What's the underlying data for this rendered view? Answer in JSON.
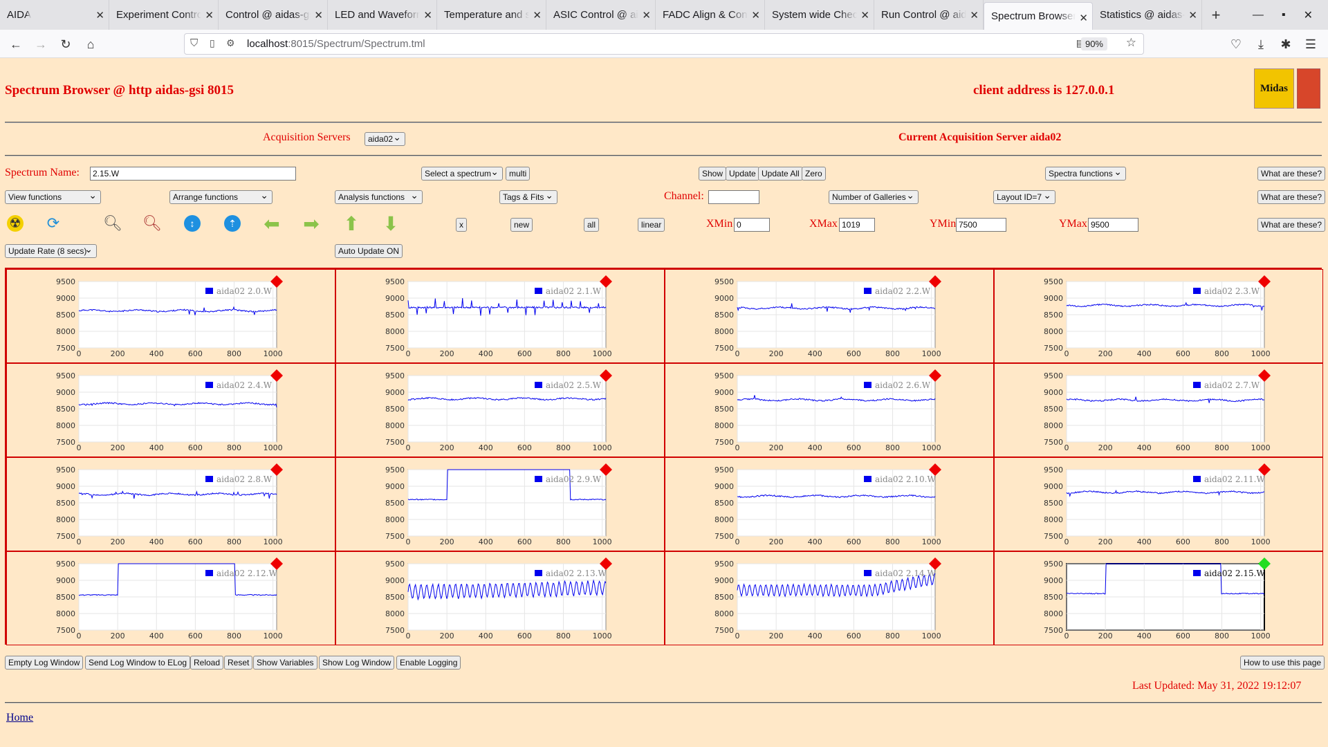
{
  "browser": {
    "tabs": [
      "AIDA",
      "Experiment Control",
      "Control @ aidas-gsi",
      "LED and Waveforms",
      "Temperature and status",
      "ASIC Control @ aidas",
      "FADC Align & Control",
      "System wide Checks",
      "Run Control @ aidas",
      "Spectrum Browser",
      "Statistics @ aidas-gsi"
    ],
    "active_tab": 9,
    "url_host": "localhost",
    "url_rest": ":8015/Spectrum/Spectrum.tml",
    "zoom": "90%"
  },
  "header": {
    "title": "Spectrum Browser @ http aidas-gsi 8015",
    "client": "client address is 127.0.0.1",
    "logo_text": "Midas"
  },
  "acq": {
    "label": "Acquisition Servers",
    "server": "aida02",
    "current": "Current Acquisition Server aida02"
  },
  "controls": {
    "spectrum_name_label": "Spectrum Name:",
    "spectrum_name": "2.15.W",
    "select_spectrum": "Select a spectrum",
    "multi": "multi",
    "show": "Show",
    "update": "Update",
    "update_all": "Update All",
    "zero": "Zero",
    "spectra_functions": "Spectra functions",
    "what": "What are these?",
    "view_functions": "View functions",
    "arrange_functions": "Arrange functions",
    "analysis_functions": "Analysis functions",
    "tags_fits": "Tags & Fits",
    "channel_label": "Channel:",
    "channel": "",
    "galleries": "Number of Galleries",
    "layout": "Layout ID=7",
    "x": "x",
    "new": "new",
    "all": "all",
    "linear": "linear",
    "xmin_label": "XMin",
    "xmin": "0",
    "xmax_label": "XMax",
    "xmax": "1019",
    "ymin_label": "YMin",
    "ymin": "7500",
    "ymax_label": "YMax",
    "ymax": "9500",
    "update_rate": "Update Rate (8 secs)",
    "auto_update": "Auto Update ON"
  },
  "icons": [
    "radiation-icon",
    "refresh-icon",
    "zoom-in-icon",
    "zoom-out-icon",
    "expand-vertical-icon",
    "compress-vertical-icon",
    "arrow-left-icon",
    "arrow-right-icon",
    "arrow-up-icon",
    "arrow-down-icon"
  ],
  "chart_data": [
    {
      "type": "line",
      "title": "aida02 2.0.W",
      "series": [
        {
          "name": "aida02 2.0.W",
          "shape": "flat",
          "level": 8620
        }
      ],
      "xlim": [
        0,
        1019
      ],
      "ylim": [
        7500,
        9500
      ],
      "xticks": [
        0,
        200,
        400,
        600,
        800,
        1000
      ],
      "yticks": [
        7500,
        8000,
        8500,
        9000,
        9500
      ],
      "marker": "red"
    },
    {
      "type": "line",
      "title": "aida02 2.1.W",
      "series": [
        {
          "name": "aida02 2.1.W",
          "shape": "spiky",
          "level": 8720
        }
      ],
      "xlim": [
        0,
        1019
      ],
      "ylim": [
        7500,
        9500
      ],
      "xticks": [
        0,
        200,
        400,
        600,
        800,
        1000
      ],
      "yticks": [
        7500,
        8000,
        8500,
        9000,
        9500
      ],
      "marker": "red"
    },
    {
      "type": "line",
      "title": "aida02 2.2.W",
      "series": [
        {
          "name": "aida02 2.2.W",
          "shape": "flat",
          "level": 8700
        }
      ],
      "xlim": [
        0,
        1019
      ],
      "ylim": [
        7500,
        9500
      ],
      "xticks": [
        0,
        200,
        400,
        600,
        800,
        1000
      ],
      "yticks": [
        7500,
        8000,
        8500,
        9000,
        9500
      ],
      "marker": "red"
    },
    {
      "type": "line",
      "title": "aida02 2.3.W",
      "series": [
        {
          "name": "aida02 2.3.W",
          "shape": "flat",
          "level": 8780
        }
      ],
      "xlim": [
        0,
        1019
      ],
      "ylim": [
        7500,
        9500
      ],
      "xticks": [
        0,
        200,
        400,
        600,
        800,
        1000
      ],
      "yticks": [
        7500,
        8000,
        8500,
        9000,
        9500
      ],
      "marker": "red"
    },
    {
      "type": "line",
      "title": "aida02 2.4.W",
      "series": [
        {
          "name": "aida02 2.4.W",
          "shape": "flat",
          "level": 8650
        }
      ],
      "xlim": [
        0,
        1019
      ],
      "ylim": [
        7500,
        9500
      ],
      "xticks": [
        0,
        200,
        400,
        600,
        800,
        1000
      ],
      "yticks": [
        7500,
        8000,
        8500,
        9000,
        9500
      ],
      "marker": "red"
    },
    {
      "type": "line",
      "title": "aida02 2.5.W",
      "series": [
        {
          "name": "aida02 2.5.W",
          "shape": "flat",
          "level": 8800
        }
      ],
      "xlim": [
        0,
        1019
      ],
      "ylim": [
        7500,
        9500
      ],
      "xticks": [
        0,
        200,
        400,
        600,
        800,
        1000
      ],
      "yticks": [
        7500,
        8000,
        8500,
        9000,
        9500
      ],
      "marker": "red"
    },
    {
      "type": "line",
      "title": "aida02 2.6.W",
      "series": [
        {
          "name": "aida02 2.6.W",
          "shape": "flat",
          "level": 8770
        }
      ],
      "xlim": [
        0,
        1019
      ],
      "ylim": [
        7500,
        9500
      ],
      "xticks": [
        0,
        200,
        400,
        600,
        800,
        1000
      ],
      "yticks": [
        7500,
        8000,
        8500,
        9000,
        9500
      ],
      "marker": "red"
    },
    {
      "type": "line",
      "title": "aida02 2.7.W",
      "series": [
        {
          "name": "aida02 2.7.W",
          "shape": "flat",
          "level": 8760
        }
      ],
      "xlim": [
        0,
        1019
      ],
      "ylim": [
        7500,
        9500
      ],
      "xticks": [
        0,
        200,
        400,
        600,
        800,
        1000
      ],
      "yticks": [
        7500,
        8000,
        8500,
        9000,
        9500
      ],
      "marker": "red"
    },
    {
      "type": "line",
      "title": "aida02 2.8.W",
      "series": [
        {
          "name": "aida02 2.8.W",
          "shape": "flat",
          "level": 8760
        }
      ],
      "xlim": [
        0,
        1019
      ],
      "ylim": [
        7500,
        9500
      ],
      "xticks": [
        0,
        200,
        400,
        600,
        800,
        1000
      ],
      "yticks": [
        7500,
        8000,
        8500,
        9000,
        9500
      ],
      "marker": "red"
    },
    {
      "type": "line",
      "title": "aida02 2.9.W",
      "series": [
        {
          "name": "aida02 2.9.W",
          "shape": "step",
          "level": 8600,
          "x0": 200,
          "x1": 835
        }
      ],
      "xlim": [
        0,
        1019
      ],
      "ylim": [
        7500,
        9500
      ],
      "xticks": [
        0,
        200,
        400,
        600,
        800,
        1000
      ],
      "yticks": [
        7500,
        8000,
        8500,
        9000,
        9500
      ],
      "marker": "red"
    },
    {
      "type": "line",
      "title": "aida02 2.10.W",
      "series": [
        {
          "name": "aida02 2.10.W",
          "shape": "flat",
          "level": 8700
        }
      ],
      "xlim": [
        0,
        1019
      ],
      "ylim": [
        7500,
        9500
      ],
      "xticks": [
        0,
        200,
        400,
        600,
        800,
        1000
      ],
      "yticks": [
        7500,
        8000,
        8500,
        9000,
        9500
      ],
      "marker": "red"
    },
    {
      "type": "line",
      "title": "aida02 2.11.W",
      "series": [
        {
          "name": "aida02 2.11.W",
          "shape": "flat",
          "level": 8820
        }
      ],
      "xlim": [
        0,
        1019
      ],
      "ylim": [
        7500,
        9500
      ],
      "xticks": [
        0,
        200,
        400,
        600,
        800,
        1000
      ],
      "yticks": [
        7500,
        8000,
        8500,
        9000,
        9500
      ],
      "marker": "red"
    },
    {
      "type": "line",
      "title": "aida02 2.12.W",
      "series": [
        {
          "name": "aida02 2.12.W",
          "shape": "step",
          "level": 8560,
          "x0": 200,
          "x1": 805
        }
      ],
      "xlim": [
        0,
        1019
      ],
      "ylim": [
        7500,
        9500
      ],
      "xticks": [
        0,
        200,
        400,
        600,
        800,
        1000
      ],
      "yticks": [
        7500,
        8000,
        8500,
        9000,
        9500
      ],
      "marker": "red"
    },
    {
      "type": "line",
      "title": "aida02 2.13.W",
      "series": [
        {
          "name": "aida02 2.13.W",
          "shape": "oscillate",
          "level": 8650
        }
      ],
      "xlim": [
        0,
        1019
      ],
      "ylim": [
        7500,
        9500
      ],
      "xticks": [
        0,
        200,
        400,
        600,
        800,
        1000
      ],
      "yticks": [
        7500,
        8000,
        8500,
        9000,
        9500
      ],
      "marker": "red"
    },
    {
      "type": "line",
      "title": "aida02 2.14.W",
      "series": [
        {
          "name": "aida02 2.14.W",
          "shape": "oscillate2",
          "level": 8700
        }
      ],
      "xlim": [
        0,
        1019
      ],
      "ylim": [
        7500,
        9500
      ],
      "xticks": [
        0,
        200,
        400,
        600,
        800,
        1000
      ],
      "yticks": [
        7500,
        8000,
        8500,
        9000,
        9500
      ],
      "marker": "red"
    },
    {
      "type": "line",
      "title": "aida02 2.15.W",
      "series": [
        {
          "name": "aida02 2.15.W",
          "shape": "step",
          "level": 8600,
          "x0": 200,
          "x1": 795
        }
      ],
      "xlim": [
        0,
        1019
      ],
      "ylim": [
        7500,
        9500
      ],
      "xticks": [
        0,
        200,
        400,
        600,
        800,
        1000
      ],
      "yticks": [
        7500,
        8000,
        8500,
        9000,
        9500
      ],
      "marker": "green",
      "selected": true
    }
  ],
  "bottom": {
    "empty_log": "Empty Log Window",
    "send_log": "Send Log Window to ELog",
    "reload": "Reload",
    "reset": "Reset",
    "show_vars": "Show Variables",
    "show_log": "Show Log Window",
    "enable_logging": "Enable Logging",
    "how_to": "How to use this page",
    "last_updated": "Last Updated: May 31, 2022 19:12:07",
    "home": "Home"
  }
}
